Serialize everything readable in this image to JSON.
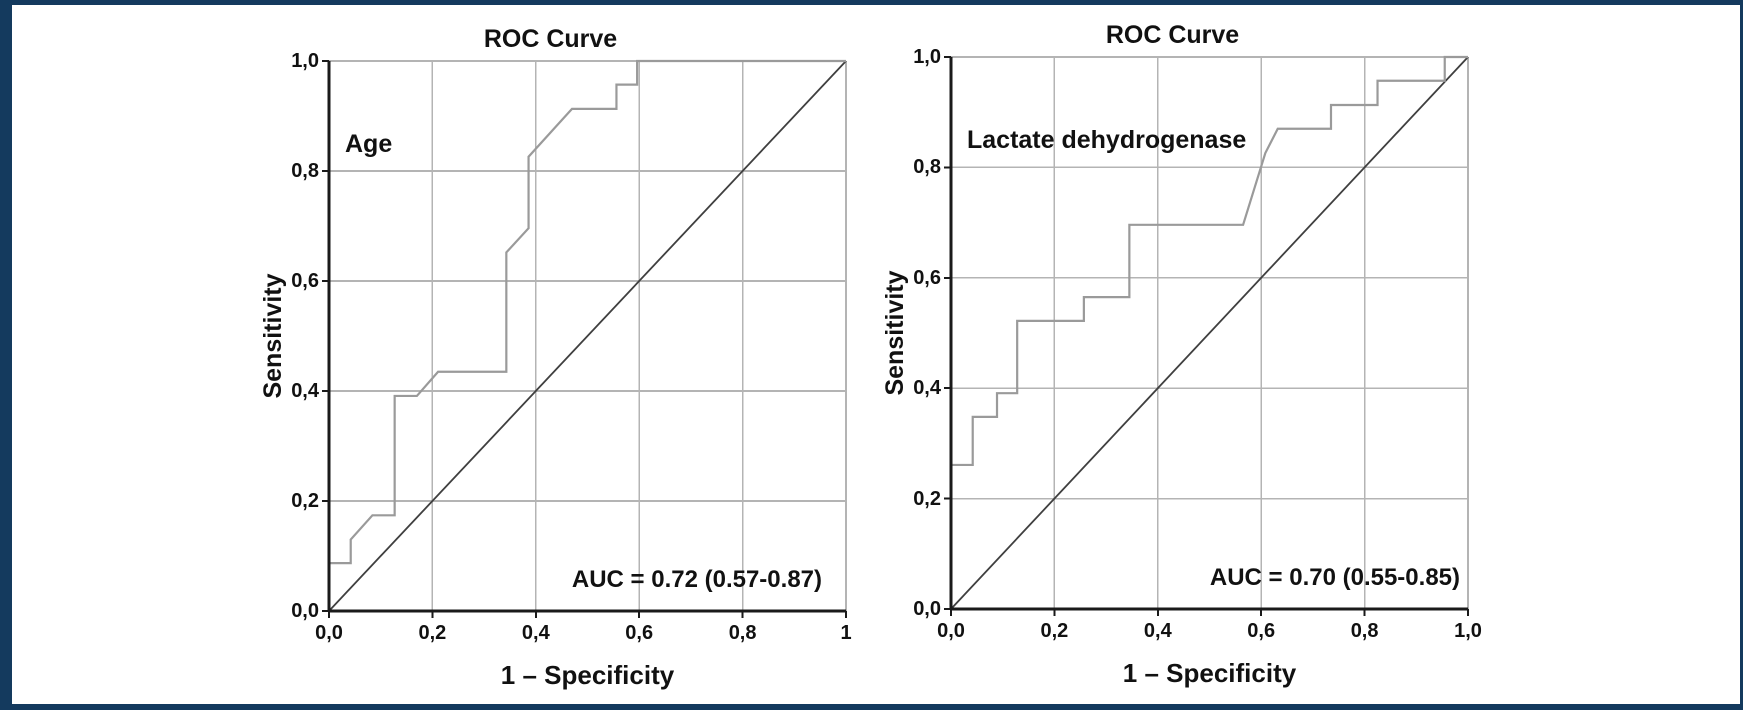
{
  "figure": {
    "description": "Two ROC curve plots",
    "border_color": "#143a5e",
    "background_color": "#ffffff",
    "colors": {
      "grid": "#b4b4b4",
      "axis": "#1a1a1a",
      "roc_curve": "#9a9a9a",
      "reference_line": "#3f3f3f",
      "text": "#111111"
    }
  },
  "chart_data": [
    {
      "type": "line",
      "title": "ROC Curve",
      "series_label": "Age",
      "annotation": "AUC = 0.72 (0.57-0.87)",
      "auc": 0.72,
      "auc_ci_low": 0.57,
      "auc_ci_high": 0.87,
      "xlabel": "1 – Specificity",
      "ylabel": "Sensitivity",
      "xlim": [
        0,
        1
      ],
      "ylim": [
        0,
        1
      ],
      "grid": true,
      "x_tick_values": [
        0,
        0.2,
        0.4,
        0.6,
        0.8,
        1
      ],
      "y_tick_values": [
        0,
        0.2,
        0.4,
        0.6,
        0.8,
        1
      ],
      "x_tick_labels": [
        "0,0",
        "0,2",
        "0,4",
        "0,6",
        "0,8",
        "1"
      ],
      "y_tick_labels": [
        "0,0",
        "0,2",
        "0,4",
        "0,6",
        "0,8",
        "1,0"
      ],
      "series": [
        {
          "name": "roc-curve",
          "points": [
            [
              0,
              0
            ],
            [
              0,
              0.087
            ],
            [
              0.042,
              0.087
            ],
            [
              0.042,
              0.13
            ],
            [
              0.084,
              0.174
            ],
            [
              0.127,
              0.174
            ],
            [
              0.127,
              0.391
            ],
            [
              0.17,
              0.391
            ],
            [
              0.211,
              0.435
            ],
            [
              0.343,
              0.435
            ],
            [
              0.343,
              0.652
            ],
            [
              0.386,
              0.696
            ],
            [
              0.386,
              0.826
            ],
            [
              0.47,
              0.913
            ],
            [
              0.556,
              0.913
            ],
            [
              0.556,
              0.957
            ],
            [
              0.596,
              0.957
            ],
            [
              0.596,
              1
            ],
            [
              1,
              1
            ]
          ]
        },
        {
          "name": "reference-diagonal",
          "points": [
            [
              0,
              0
            ],
            [
              1,
              1
            ]
          ]
        }
      ]
    },
    {
      "type": "line",
      "title": "ROC Curve",
      "series_label": "Lactate dehydrogenase",
      "annotation": "AUC = 0.70 (0.55-0.85)",
      "auc": 0.7,
      "auc_ci_low": 0.55,
      "auc_ci_high": 0.85,
      "xlabel": "1 – Specificity",
      "ylabel": "Sensitivity",
      "xlim": [
        0,
        1
      ],
      "ylim": [
        0,
        1
      ],
      "grid": true,
      "x_tick_values": [
        0,
        0.2,
        0.4,
        0.6,
        0.8,
        1
      ],
      "y_tick_values": [
        0,
        0.2,
        0.4,
        0.6,
        0.8,
        1
      ],
      "x_tick_labels": [
        "0,0",
        "0,2",
        "0,4",
        "0,6",
        "0,8",
        "1,0"
      ],
      "y_tick_labels": [
        "0,0",
        "0,2",
        "0,4",
        "0,6",
        "0,8",
        "1,0"
      ],
      "series": [
        {
          "name": "roc-curve",
          "points": [
            [
              0,
              0
            ],
            [
              0,
              0.261
            ],
            [
              0.042,
              0.261
            ],
            [
              0.042,
              0.348
            ],
            [
              0.089,
              0.348
            ],
            [
              0.089,
              0.391
            ],
            [
              0.128,
              0.391
            ],
            [
              0.128,
              0.522
            ],
            [
              0.257,
              0.522
            ],
            [
              0.257,
              0.565
            ],
            [
              0.345,
              0.565
            ],
            [
              0.345,
              0.696
            ],
            [
              0.565,
              0.696
            ],
            [
              0.608,
              0.826
            ],
            [
              0.632,
              0.87
            ],
            [
              0.735,
              0.87
            ],
            [
              0.735,
              0.913
            ],
            [
              0.825,
              0.913
            ],
            [
              0.825,
              0.957
            ],
            [
              0.955,
              0.957
            ],
            [
              0.955,
              1
            ],
            [
              1,
              1
            ]
          ]
        },
        {
          "name": "reference-diagonal",
          "points": [
            [
              0,
              0
            ],
            [
              1,
              1
            ]
          ]
        }
      ]
    }
  ]
}
